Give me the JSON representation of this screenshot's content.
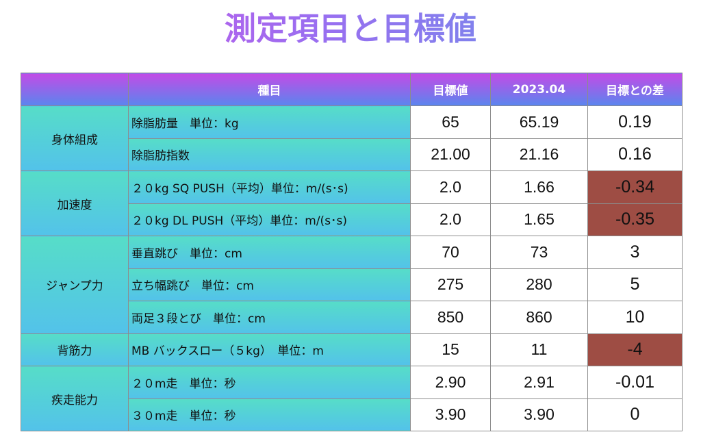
{
  "title": "測定項目と目標値",
  "header": {
    "category": "",
    "item": "種目",
    "target": "目標値",
    "measured": "2023.04",
    "difference": "目標との差"
  },
  "colors": {
    "header_gradient_start": "#c34be6",
    "header_gradient_end": "#5a86ee",
    "category_gradient_start": "#56ddc8",
    "category_gradient_end": "#53c2ea",
    "negative_highlight": "#9e4d44"
  },
  "rows": [
    {
      "category": "身体組成",
      "item": "除脂肪量　単位：kg",
      "target": "65",
      "measured": "65.19",
      "difference": "0.19",
      "highlight": false
    },
    {
      "item": "除脂肪指数",
      "target": "21.00",
      "measured": "21.16",
      "difference": "0.16",
      "highlight": false
    },
    {
      "category": "加速度",
      "item": "２０kg SQ PUSH（平均）単位：m/(s･s)",
      "target": "2.0",
      "measured": "1.66",
      "difference": "-0.34",
      "highlight": true
    },
    {
      "item": "２０kg DL PUSH（平均）単位：m/(s･s)",
      "target": "2.0",
      "measured": "1.65",
      "difference": "-0.35",
      "highlight": true
    },
    {
      "category": "ジャンプ力",
      "item": "垂直跳び　単位：cm",
      "target": "70",
      "measured": "73",
      "difference": "3",
      "highlight": false
    },
    {
      "item": "立ち幅跳び　単位：cm",
      "target": "275",
      "measured": "280",
      "difference": "5",
      "highlight": false
    },
    {
      "item": "両足３段とび　単位：cm",
      "target": "850",
      "measured": "860",
      "difference": "10",
      "highlight": false
    },
    {
      "category": "背筋力",
      "item": "MB バックスロー（５kg）　単位：m",
      "target": "15",
      "measured": "11",
      "difference": "-4",
      "highlight": true
    },
    {
      "category": "疾走能力",
      "item": "２０m走　単位：秒",
      "target": "2.90",
      "measured": "2.91",
      "difference": "-0.01",
      "highlight": false
    },
    {
      "item": "３０m走　単位：秒",
      "target": "3.90",
      "measured": "3.90",
      "difference": "0",
      "highlight": false
    }
  ]
}
